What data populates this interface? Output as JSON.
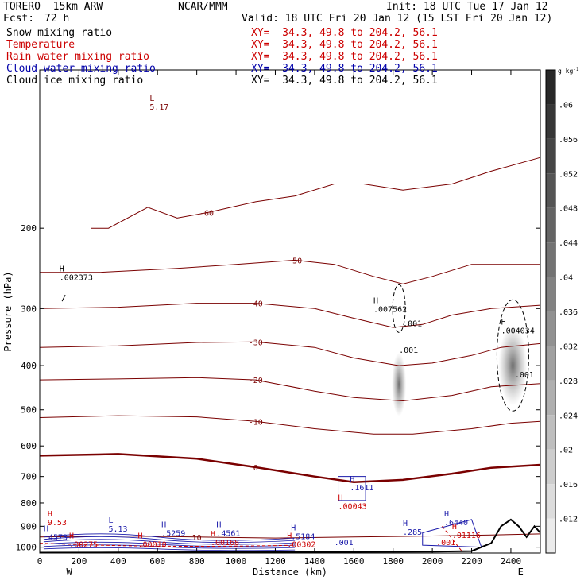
{
  "header": {
    "model": "TORERO  15km ARW",
    "org": "NCAR/MMM",
    "init": "Init: 18 UTC Tue 17 Jan 12",
    "fcst_label": "Fcst:",
    "fcst_value": "72 h",
    "valid": "Valid: 18 UTC Fri 20 Jan 12 (15 LST Fri 20 Jan 12)"
  },
  "legend": [
    {
      "name": "Snow mixing ratio",
      "xy": "XY=  34.3, 49.8 to 204.2, 56.1",
      "color": "#000000"
    },
    {
      "name": "Temperature",
      "xy": "XY=  34.3, 49.8 to 204.2, 56.1",
      "color": "#cc0000"
    },
    {
      "name": "Rain water mixing ratio",
      "xy": "XY=  34.3, 49.8 to 204.2, 56.1",
      "color": "#cc0000"
    },
    {
      "name": "Cloud water mixing ratio",
      "xy": "XY=  34.3, 49.8 to 204.2, 56.1",
      "color": "#0000aa"
    },
    {
      "name": "Cloud ice mixing ratio",
      "xy": "XY=  34.3, 49.8 to 204.2, 56.1",
      "color": "#000000"
    }
  ],
  "chart_data": {
    "type": "contour",
    "xlabel": "Distance (km)",
    "ylabel": "Pressure (hPa)",
    "xlim": [
      0,
      2550
    ],
    "ylim": [
      1030,
      90
    ],
    "y_scale": "log",
    "x_ticks": [
      0,
      200,
      400,
      600,
      800,
      1000,
      1200,
      1400,
      1600,
      1800,
      2000,
      2200,
      2400
    ],
    "y_ticks": [
      200,
      300,
      400,
      500,
      600,
      700,
      800,
      900,
      1000
    ],
    "endpoints": [
      "W",
      "E"
    ],
    "colorbar": {
      "unit": "g kg",
      "unit_exp": "-1",
      "ticks": [
        ".012",
        ".016",
        ".02",
        ".024",
        ".028",
        ".032",
        ".036",
        ".04",
        ".044",
        ".048",
        ".052",
        ".056",
        ".06"
      ]
    },
    "temperature_contours": [
      {
        "value": -60,
        "label": "-60",
        "points": [
          [
            260,
            200
          ],
          [
            350,
            200
          ],
          [
            550,
            180
          ],
          [
            700,
            190
          ],
          [
            850,
            185
          ],
          [
            1100,
            175
          ],
          [
            1300,
            170
          ],
          [
            1500,
            160
          ],
          [
            1650,
            160
          ],
          [
            1850,
            165
          ],
          [
            2100,
            160
          ],
          [
            2300,
            150
          ],
          [
            2550,
            140
          ]
        ]
      },
      {
        "value": -50,
        "label": "-50",
        "points": [
          [
            0,
            250
          ],
          [
            300,
            250
          ],
          [
            700,
            245
          ],
          [
            1000,
            240
          ],
          [
            1300,
            235
          ],
          [
            1500,
            240
          ],
          [
            1700,
            255
          ],
          [
            1850,
            265
          ],
          [
            2000,
            255
          ],
          [
            2200,
            240
          ],
          [
            2400,
            240
          ],
          [
            2550,
            240
          ]
        ]
      },
      {
        "value": -40,
        "label": "-40",
        "points": [
          [
            0,
            300
          ],
          [
            400,
            298
          ],
          [
            800,
            292
          ],
          [
            1100,
            292
          ],
          [
            1400,
            300
          ],
          [
            1600,
            315
          ],
          [
            1800,
            330
          ],
          [
            1950,
            325
          ],
          [
            2100,
            310
          ],
          [
            2300,
            300
          ],
          [
            2550,
            295
          ]
        ]
      },
      {
        "value": -30,
        "label": "-30",
        "points": [
          [
            0,
            365
          ],
          [
            400,
            362
          ],
          [
            800,
            356
          ],
          [
            1100,
            355
          ],
          [
            1400,
            365
          ],
          [
            1600,
            385
          ],
          [
            1830,
            400
          ],
          [
            2000,
            395
          ],
          [
            2200,
            380
          ],
          [
            2350,
            365
          ],
          [
            2550,
            358
          ]
        ]
      },
      {
        "value": -20,
        "label": "-20",
        "points": [
          [
            0,
            430
          ],
          [
            400,
            428
          ],
          [
            800,
            425
          ],
          [
            1100,
            430
          ],
          [
            1400,
            455
          ],
          [
            1600,
            470
          ],
          [
            1850,
            478
          ],
          [
            2100,
            465
          ],
          [
            2300,
            445
          ],
          [
            2550,
            438
          ]
        ]
      },
      {
        "value": -10,
        "label": "-10",
        "points": [
          [
            0,
            520
          ],
          [
            400,
            515
          ],
          [
            800,
            518
          ],
          [
            1100,
            530
          ],
          [
            1400,
            550
          ],
          [
            1700,
            565
          ],
          [
            1900,
            565
          ],
          [
            2200,
            550
          ],
          [
            2400,
            535
          ],
          [
            2550,
            530
          ]
        ]
      },
      {
        "value": 0,
        "label": "0",
        "points": [
          [
            0,
            630
          ],
          [
            400,
            625
          ],
          [
            800,
            640
          ],
          [
            1100,
            668
          ],
          [
            1400,
            700
          ],
          [
            1600,
            720
          ],
          [
            1850,
            712
          ],
          [
            2100,
            690
          ],
          [
            2300,
            670
          ],
          [
            2550,
            660
          ]
        ]
      },
      {
        "value": 10,
        "label": "10",
        "points": [
          [
            0,
            950
          ],
          [
            400,
            945
          ],
          [
            800,
            950
          ],
          [
            1200,
            955
          ],
          [
            1600,
            950
          ],
          [
            2000,
            945
          ],
          [
            2300,
            940
          ],
          [
            2550,
            935
          ]
        ]
      }
    ],
    "snow_maxima": [
      {
        "label": "H",
        "value": ".002373",
        "x": 100,
        "p": 260
      },
      {
        "label": "H",
        "value": ".007562",
        "x": 1700,
        "p": 305
      },
      {
        "label": "H",
        "value": ".004034",
        "x": 2350,
        "p": 340
      },
      {
        "label": "",
        "value": ".001",
        "x": 1850,
        "p": 328
      },
      {
        "label": "",
        "value": ".001",
        "x": 1830,
        "p": 375
      },
      {
        "label": "",
        "value": ".001",
        "x": 2420,
        "p": 425
      }
    ],
    "cloud_ice_maxima": [
      {
        "label": "L",
        "value": "5.17",
        "x": 560,
        "p": 110
      }
    ],
    "cloud_water_maxima": [
      {
        "label": "H",
        "value": ".1611",
        "x": 1580,
        "p": 750
      },
      {
        "label": "H",
        "value": ".4573",
        "x": 20,
        "p": 965
      },
      {
        "label": "L",
        "value": "5.13",
        "x": 350,
        "p": 925
      },
      {
        "label": "H",
        "value": ".5259",
        "x": 620,
        "p": 945
      },
      {
        "label": "H",
        "value": ".4561",
        "x": 900,
        "p": 945
      },
      {
        "label": "H",
        "value": ".5184",
        "x": 1280,
        "p": 960
      },
      {
        "label": "H",
        "value": ".285",
        "x": 1850,
        "p": 940
      },
      {
        "label": "H",
        "value": ".6440",
        "x": 2060,
        "p": 895
      },
      {
        "label": "",
        "value": ".001",
        "x": 1500,
        "p": 990
      }
    ],
    "rain_maxima": [
      {
        "label": "H",
        "value": ".00043",
        "x": 1520,
        "p": 825
      },
      {
        "label": "H",
        "value": "9.53",
        "x": 40,
        "p": 895
      },
      {
        "label": "H",
        "value": ".00275",
        "x": 150,
        "p": 1000
      },
      {
        "label": "H",
        "value": ".00010",
        "x": 500,
        "p": 1000
      },
      {
        "label": "H",
        "value": ".00168",
        "x": 870,
        "p": 990
      },
      {
        "label": "H",
        "value": ".00302",
        "x": 1260,
        "p": 1000
      },
      {
        "label": "H",
        "value": ".01116",
        "x": 2100,
        "p": 955
      },
      {
        "label": "",
        "value": ".001",
        "x": 2020,
        "p": 990
      }
    ],
    "terrain": [
      [
        0,
        1028
      ],
      [
        400,
        1027
      ],
      [
        800,
        1026
      ],
      [
        1200,
        1025
      ],
      [
        1600,
        1024
      ],
      [
        2000,
        1023
      ],
      [
        2200,
        1020
      ],
      [
        2300,
        980
      ],
      [
        2350,
        900
      ],
      [
        2400,
        870
      ],
      [
        2440,
        900
      ],
      [
        2480,
        950
      ],
      [
        2520,
        900
      ],
      [
        2550,
        930
      ]
    ]
  }
}
